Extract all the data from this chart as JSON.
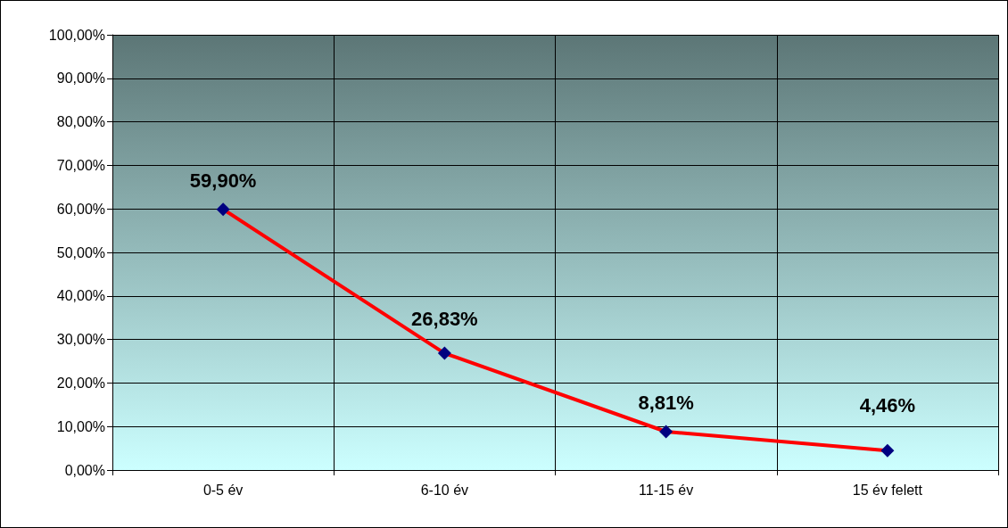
{
  "chart_data": {
    "type": "line",
    "categories": [
      "0-5 év",
      "6-10 év",
      "11-15 év",
      "15 év felett"
    ],
    "series": [
      {
        "color": "#ff0000",
        "colors": [
          "#000080",
          "#000080",
          "#000080",
          "#000080"
        ],
        "values": [
          59.9,
          26.83,
          8.81,
          4.46
        ],
        "value_labels": [
          "59,90%",
          "26,83%",
          "8,81%",
          "4,46%"
        ]
      }
    ],
    "ylim": [
      0,
      100
    ],
    "yticks": [
      {
        "value": 0,
        "label": "0,00%"
      },
      {
        "value": 10,
        "label": "10,00%"
      },
      {
        "value": 20,
        "label": "20,00%"
      },
      {
        "value": 30,
        "label": "30,00%"
      },
      {
        "value": 40,
        "label": "40,00%"
      },
      {
        "value": 50,
        "label": "50,00%"
      },
      {
        "value": 60,
        "label": "60,00%"
      },
      {
        "value": 70,
        "label": "70,00%"
      },
      {
        "value": 80,
        "label": "80,00%"
      },
      {
        "value": 90,
        "label": "90,00%"
      },
      {
        "value": 100,
        "label": "100,00%"
      }
    ],
    "grid": true,
    "marker": "diamond",
    "line_style": "solid"
  }
}
